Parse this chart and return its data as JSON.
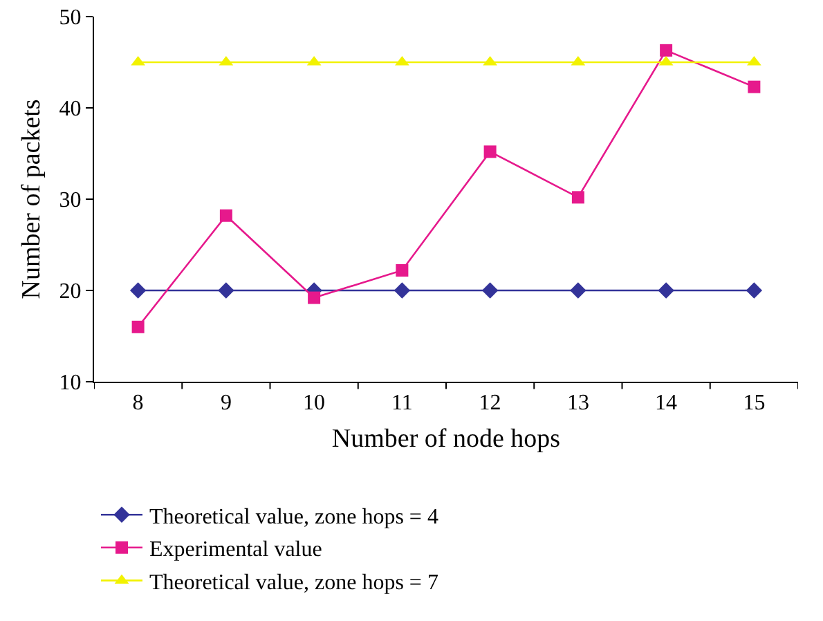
{
  "chart_data": {
    "type": "line",
    "xlabel": "Number of node hops",
    "ylabel": "Number of packets",
    "categories": [
      "8",
      "9",
      "10",
      "11",
      "12",
      "13",
      "14",
      "15"
    ],
    "series": [
      {
        "name": "Theoretical value, zone hops = 4",
        "color": "#333399",
        "marker": "diamond",
        "values": [
          20,
          20,
          20,
          20,
          20,
          20,
          20,
          20
        ]
      },
      {
        "name": "Experimental value",
        "color": "#e6198c",
        "marker": "square",
        "values": [
          16,
          28.2,
          19.2,
          22.2,
          35.2,
          30.2,
          46.3,
          42.3
        ]
      },
      {
        "name": "Theoretical value, zone hops = 7",
        "color": "#f2f200",
        "marker": "triangle",
        "values": [
          45,
          45,
          45,
          45,
          45,
          45,
          45,
          45
        ]
      }
    ],
    "ylim": [
      10,
      50
    ],
    "yticks": [
      10,
      20,
      30,
      40,
      50
    ],
    "grid": false,
    "legend": "bottom",
    "line_style": "solid"
  }
}
